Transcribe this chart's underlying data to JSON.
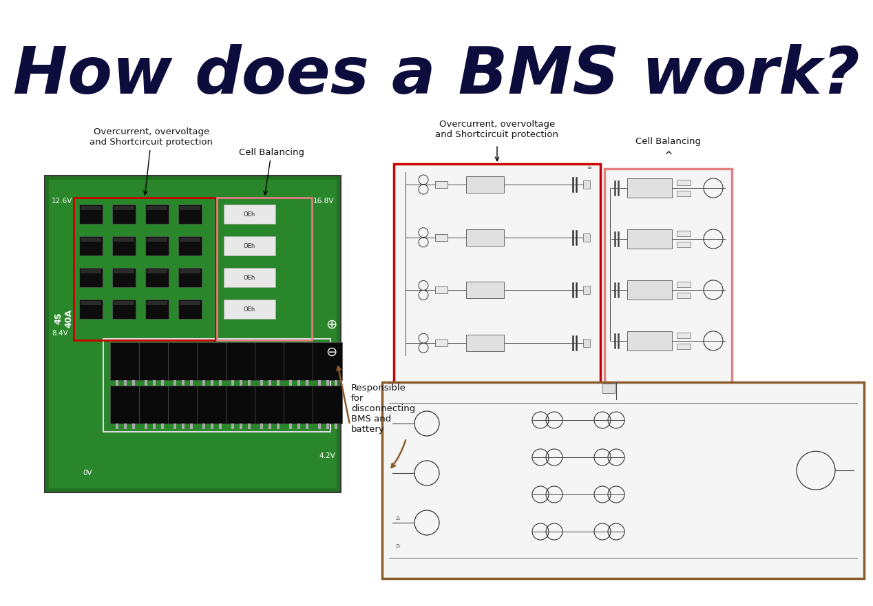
{
  "title": "How does a BMS work?",
  "title_color": "#0d0d3d",
  "title_fontsize": 68,
  "bg_color": "#ffffff",
  "label_overcurrent_left": "Overcurrent, overvoltage\nand Shortcircuit protection",
  "label_cell_balancing_left": "Cell Balancing",
  "label_overcurrent_right": "Overcurrent, overvoltage\nand Shortcircuit protection",
  "label_cell_balancing_right": "Cell Balancing",
  "label_responsible": "Responsible\nfor\ndisconnecting\nBMS and\nbattery",
  "red_box_color": "#cc0000",
  "pink_box_color": "#e08080",
  "brown_box_color": "#8B5A2B",
  "text_color": "#111111",
  "board_green_dark": "#1e6b1e",
  "board_green_light": "#2d8a2d",
  "annotation_fontsize": 9.5
}
